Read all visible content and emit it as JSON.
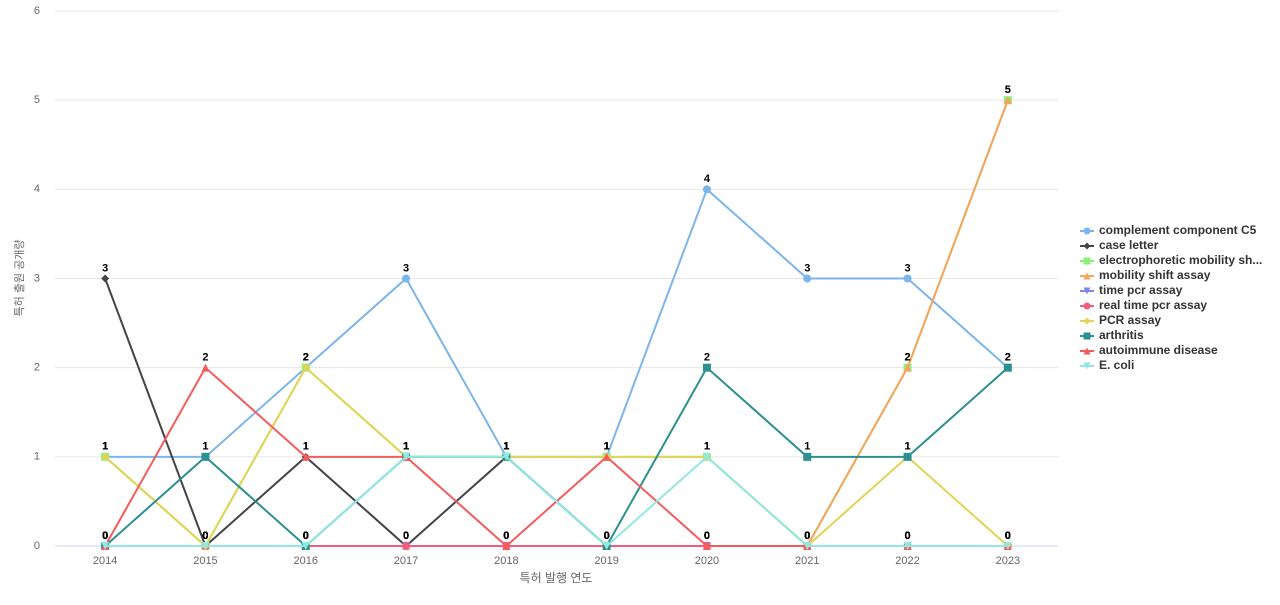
{
  "chart_data": {
    "type": "line",
    "x_label": "특허 발행 연도",
    "y_label": "특허 출원 공개량",
    "categories": [
      "2014",
      "2015",
      "2016",
      "2017",
      "2018",
      "2019",
      "2020",
      "2021",
      "2022",
      "2023"
    ],
    "ylim": [
      0,
      6
    ],
    "yticks": [
      0,
      1,
      2,
      3,
      4,
      5,
      6
    ],
    "grid": true,
    "series": [
      {
        "name": "complement component C5",
        "color": "#7cb5ec",
        "marker": "circle",
        "values": [
          1,
          1,
          2,
          3,
          1,
          1,
          4,
          3,
          3,
          2
        ]
      },
      {
        "name": "case letter",
        "color": "#434348",
        "marker": "diamond",
        "values": [
          3,
          0,
          1,
          0,
          1,
          0,
          0,
          0,
          0,
          0
        ]
      },
      {
        "name": "electrophoretic mobility sh...",
        "color": "#90ed7d",
        "marker": "square",
        "values": [
          1,
          0,
          2,
          1,
          1,
          1,
          1,
          0,
          2,
          5
        ]
      },
      {
        "name": "mobility shift assay",
        "color": "#f7a35c",
        "marker": "triangle",
        "values": [
          0,
          0,
          0,
          0,
          0,
          0,
          0,
          0,
          2,
          5
        ]
      },
      {
        "name": "time pcr assay",
        "color": "#8085e9",
        "marker": "triangle-down",
        "values": [
          0,
          0,
          0,
          0,
          0,
          0,
          0,
          0,
          0,
          0
        ]
      },
      {
        "name": "real time pcr assay",
        "color": "#f15c80",
        "marker": "circle",
        "values": [
          0,
          0,
          0,
          0,
          0,
          0,
          0,
          0,
          0,
          0
        ]
      },
      {
        "name": "PCR assay",
        "color": "#e4d354",
        "marker": "diamond",
        "values": [
          1,
          0,
          2,
          1,
          1,
          1,
          1,
          0,
          1,
          0
        ]
      },
      {
        "name": "arthritis",
        "color": "#2b908f",
        "marker": "square",
        "values": [
          0,
          1,
          0,
          1,
          1,
          0,
          2,
          1,
          1,
          2
        ]
      },
      {
        "name": "autoimmune disease",
        "color": "#f45b5b",
        "marker": "triangle",
        "values": [
          0,
          2,
          1,
          1,
          0,
          1,
          0,
          0,
          0,
          0
        ]
      },
      {
        "name": "E. coli",
        "color": "#91e8e1",
        "marker": "triangle-down",
        "values": [
          0,
          0,
          0,
          1,
          1,
          0,
          1,
          0,
          0,
          0
        ]
      }
    ]
  }
}
